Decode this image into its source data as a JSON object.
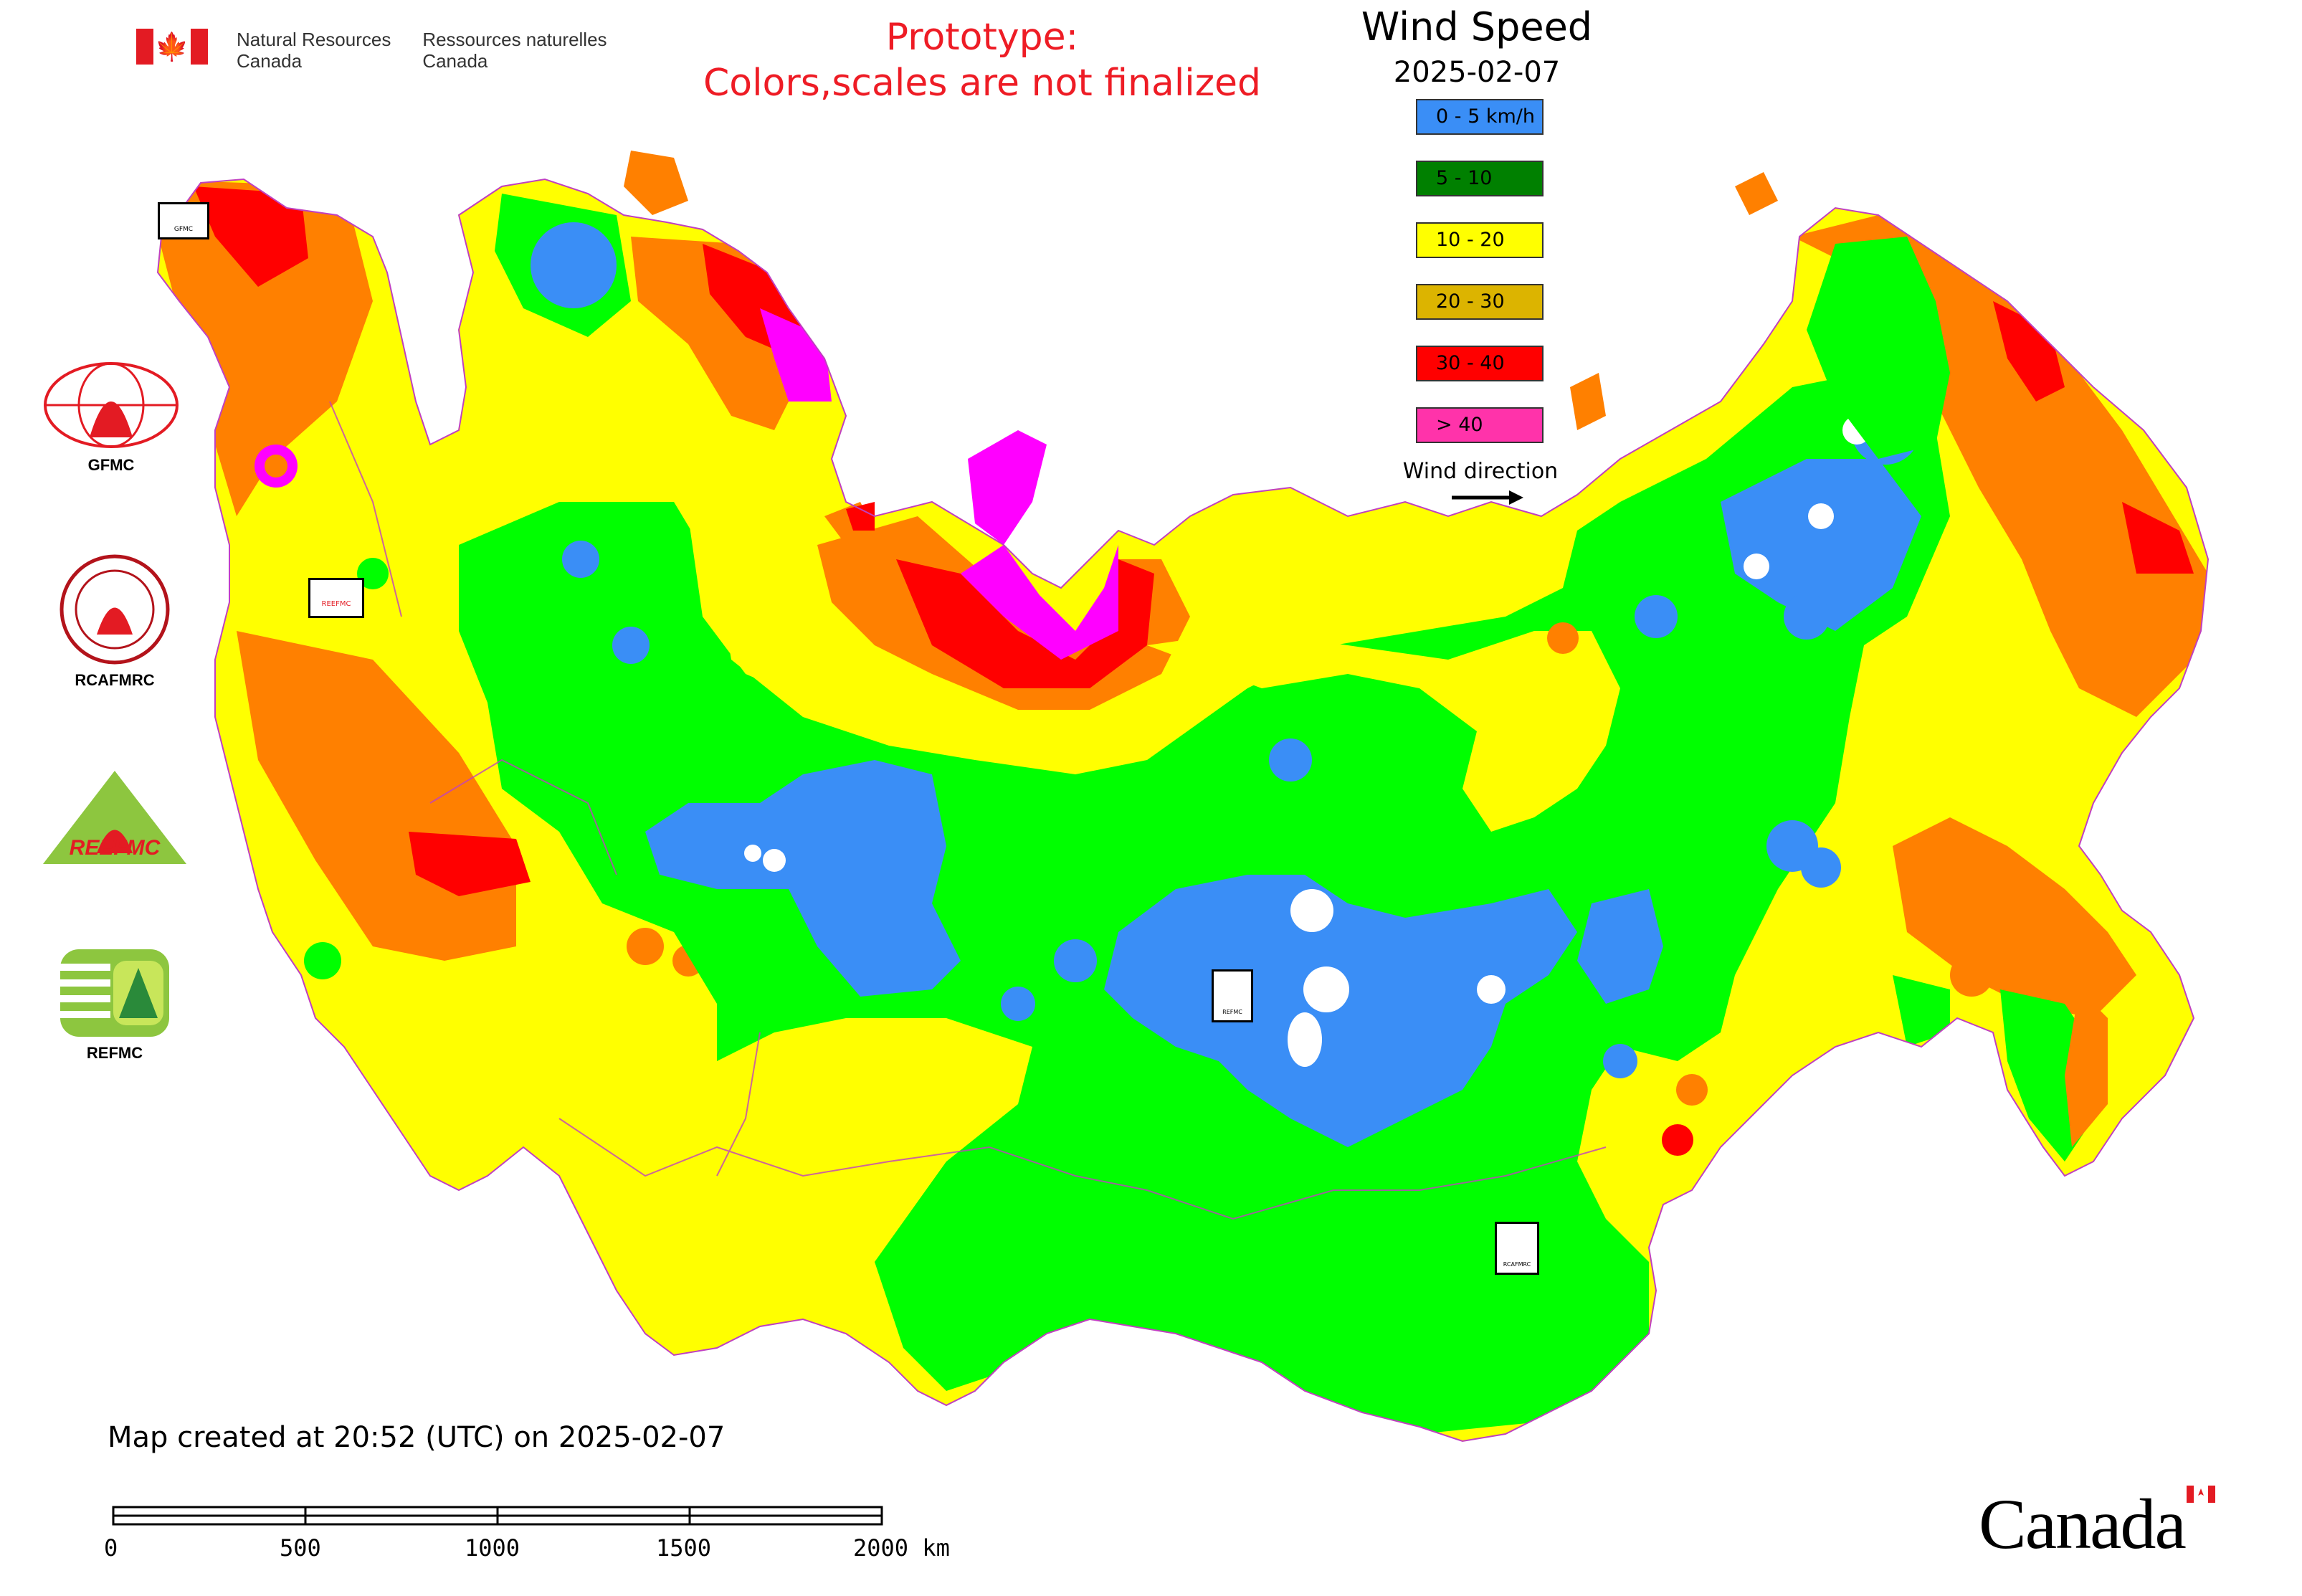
{
  "header": {
    "department_en_line1": "Natural Resources",
    "department_en_line2": "Canada",
    "department_fr_line1": "Ressources naturelles",
    "department_fr_line2": "Canada",
    "prototype_line1": "Prototype:",
    "prototype_line2": "Colors,scales are not finalized"
  },
  "legend": {
    "title": "Wind Speed",
    "date": "2025-02-07",
    "items": [
      {
        "label": "0 - 5 km/h",
        "color": "#3a8ef6"
      },
      {
        "label": "5 - 10",
        "color": "#008000"
      },
      {
        "label": "10 - 20",
        "color": "#ffff00"
      },
      {
        "label": "20 - 30",
        "color": "#dcb400"
      },
      {
        "label": "30 - 40",
        "color": "#ff0000"
      },
      {
        "label": "> 40",
        "color": "#ff33aa"
      }
    ],
    "wind_direction_label": "Wind direction"
  },
  "side_logos": [
    "GFMC",
    "RCAFMRC",
    "REEFMC",
    "REFMC"
  ],
  "map_markers": {
    "gfmc": "GFMC",
    "reefmc": "REEFMC",
    "refmc": "REFMC",
    "rcafmrc": "RCAFMRC"
  },
  "footer": {
    "created": "Map created at 20:52 (UTC) on 2025-02-07",
    "scale_labels": [
      "0",
      "500",
      "1000",
      "1500",
      "2000 km"
    ],
    "wordmark": "Canada"
  },
  "colors": {
    "low": "#3a8ef6",
    "green": "#00ff00",
    "yellow": "#ffff00",
    "orange": "#ff8000",
    "red": "#ff0000",
    "magenta": "#ff33ff",
    "boundary": "#c040c0"
  }
}
